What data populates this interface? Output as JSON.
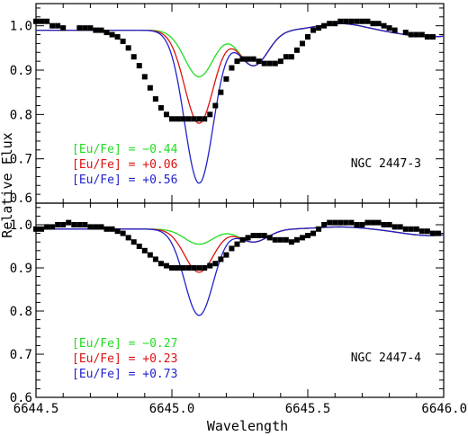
{
  "chart_data": [
    {
      "type": "line",
      "label": "NGC 2447-3",
      "xlim": [
        6644.5,
        6646.0
      ],
      "ylim": [
        0.6,
        1.05
      ],
      "yticks": [
        "1.0",
        "0.9",
        "0.8",
        "0.7",
        "0.6"
      ],
      "legend_placement": "bottom-left",
      "series": [
        {
          "name": "[Eu/Fe] = −0.44",
          "color": "#22dd22",
          "abundance": -0.44,
          "depth": 0.105
        },
        {
          "name": "[Eu/Fe] = +0.06",
          "color": "#dd1111",
          "abundance": 0.06,
          "depth": 0.21
        },
        {
          "name": "[Eu/Fe] = +0.56",
          "color": "#2222cc",
          "abundance": 0.56,
          "depth": 0.345
        }
      ],
      "observed": {
        "x": [
          6644.5,
          6644.52,
          6644.54,
          6644.56,
          6644.58,
          6644.6,
          6644.66,
          6644.68,
          6644.7,
          6644.72,
          6644.74,
          6644.76,
          6644.78,
          6644.8,
          6644.82,
          6644.84,
          6644.86,
          6644.88,
          6644.9,
          6644.92,
          6644.94,
          6644.96,
          6644.98,
          6645.0,
          6645.02,
          6645.04,
          6645.06,
          6645.08,
          6645.1,
          6645.12,
          6645.14,
          6645.16,
          6645.18,
          6645.2,
          6645.22,
          6645.24,
          6645.26,
          6645.28,
          6645.3,
          6645.32,
          6645.34,
          6645.36,
          6645.38,
          6645.4,
          6645.42,
          6645.44,
          6645.46,
          6645.48,
          6645.5,
          6645.52,
          6645.54,
          6645.56,
          6645.58,
          6645.6,
          6645.62,
          6645.64,
          6645.66,
          6645.68,
          6645.7,
          6645.72,
          6645.74,
          6645.76,
          6645.78,
          6645.8,
          6645.82,
          6645.86,
          6645.88,
          6645.9,
          6645.92,
          6645.94,
          6645.96
        ],
        "y": [
          1.01,
          1.01,
          1.01,
          1.0,
          1.0,
          0.995,
          0.995,
          0.995,
          0.995,
          0.99,
          0.99,
          0.985,
          0.98,
          0.975,
          0.965,
          0.95,
          0.93,
          0.91,
          0.885,
          0.86,
          0.835,
          0.815,
          0.8,
          0.79,
          0.79,
          0.79,
          0.79,
          0.79,
          0.79,
          0.79,
          0.8,
          0.82,
          0.85,
          0.88,
          0.905,
          0.92,
          0.925,
          0.925,
          0.925,
          0.92,
          0.915,
          0.915,
          0.915,
          0.92,
          0.93,
          0.93,
          0.945,
          0.96,
          0.975,
          0.99,
          0.995,
          1.0,
          1.005,
          1.005,
          1.01,
          1.01,
          1.01,
          1.01,
          1.01,
          1.01,
          1.005,
          1.005,
          1.0,
          0.995,
          0.99,
          0.985,
          0.98,
          0.98,
          0.98,
          0.975,
          0.975
        ]
      }
    },
    {
      "type": "line",
      "label": "NGC 2447-4",
      "xlim": [
        6644.5,
        6646.0
      ],
      "ylim": [
        0.6,
        1.05
      ],
      "yticks": [
        "1.0",
        "0.9",
        "0.8",
        "0.7",
        "0.6"
      ],
      "legend_placement": "bottom-left",
      "series": [
        {
          "name": "[Eu/Fe] = −0.27",
          "color": "#22dd22",
          "abundance": -0.27,
          "depth": 0.035
        },
        {
          "name": "[Eu/Fe] = +0.23",
          "color": "#dd1111",
          "abundance": 0.23,
          "depth": 0.1
        },
        {
          "name": "[Eu/Fe] = +0.73",
          "color": "#2222cc",
          "abundance": 0.73,
          "depth": 0.2
        }
      ],
      "observed": {
        "x": [
          6644.5,
          6644.52,
          6644.54,
          6644.56,
          6644.58,
          6644.6,
          6644.62,
          6644.64,
          6644.66,
          6644.68,
          6644.7,
          6644.72,
          6644.74,
          6644.76,
          6644.78,
          6644.8,
          6644.82,
          6644.84,
          6644.86,
          6644.88,
          6644.9,
          6644.92,
          6644.94,
          6644.96,
          6644.98,
          6645.0,
          6645.02,
          6645.04,
          6645.06,
          6645.08,
          6645.1,
          6645.12,
          6645.14,
          6645.16,
          6645.18,
          6645.2,
          6645.22,
          6645.24,
          6645.26,
          6645.28,
          6645.3,
          6645.32,
          6645.34,
          6645.36,
          6645.38,
          6645.4,
          6645.42,
          6645.44,
          6645.46,
          6645.48,
          6645.5,
          6645.52,
          6645.54,
          6645.56,
          6645.58,
          6645.6,
          6645.62,
          6645.64,
          6645.66,
          6645.68,
          6645.7,
          6645.72,
          6645.74,
          6645.76,
          6645.78,
          6645.8,
          6645.82,
          6645.84,
          6645.86,
          6645.88,
          6645.9,
          6645.92,
          6645.94,
          6645.96,
          6645.98
        ],
        "y": [
          0.99,
          0.99,
          0.995,
          0.995,
          1.0,
          1.0,
          1.005,
          1.0,
          1.0,
          1.0,
          0.995,
          0.995,
          0.995,
          0.99,
          0.99,
          0.985,
          0.98,
          0.97,
          0.96,
          0.95,
          0.94,
          0.93,
          0.92,
          0.91,
          0.905,
          0.9,
          0.9,
          0.9,
          0.9,
          0.9,
          0.9,
          0.9,
          0.905,
          0.91,
          0.92,
          0.93,
          0.945,
          0.955,
          0.965,
          0.97,
          0.975,
          0.975,
          0.975,
          0.97,
          0.965,
          0.965,
          0.965,
          0.96,
          0.965,
          0.97,
          0.975,
          0.98,
          0.99,
          1.0,
          1.005,
          1.005,
          1.005,
          1.005,
          1.005,
          1.0,
          1.0,
          1.005,
          1.005,
          1.005,
          1.0,
          1.0,
          0.995,
          0.995,
          0.99,
          0.99,
          0.99,
          0.985,
          0.985,
          0.98,
          0.98
        ]
      }
    }
  ],
  "axes": {
    "xlabel": "Wavelength",
    "ylabel": "Relative Flux",
    "xticks": [
      "6644.5",
      "6645.0",
      "6645.5",
      "6646.0"
    ],
    "yticks_bottom": [
      "1.0",
      "0.9",
      "0.8",
      "0.7",
      "0.6"
    ]
  },
  "line_profile": {
    "center": 6645.1,
    "width": 0.075,
    "blend_center": 6645.3,
    "blend_width": 0.075,
    "blend_depth_top": 0.08,
    "blend_depth_bottom": 0.03,
    "wing_center": 6645.62,
    "wing_width": 0.12,
    "wing_amp_top": 0.015,
    "wing_amp_bottom": 0.005
  }
}
